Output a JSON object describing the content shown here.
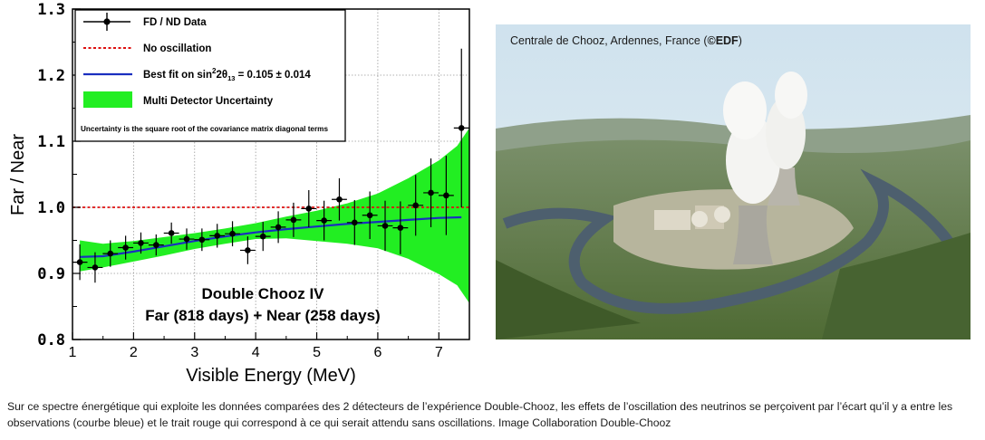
{
  "chart_data": {
    "type": "line",
    "xlabel": "Visible Energy (MeV)",
    "ylabel": "Far / Near",
    "xlim": [
      1,
      7.5
    ],
    "ylim": [
      0.8,
      1.3
    ],
    "xticks": [
      "1",
      "2",
      "3",
      "4",
      "5",
      "6",
      "7"
    ],
    "yticks": [
      "0.8",
      "0.9",
      "1.0",
      "1.1",
      "1.2",
      "1.3"
    ],
    "grid": true,
    "legend_position": "top-left",
    "legend": {
      "data": "FD / ND Data",
      "no_osc": "No oscillation",
      "best_fit_prefix": "Best fit on sin",
      "best_fit_sup": "2",
      "best_fit_mid": "2θ",
      "best_fit_sub": "13",
      "best_fit_value": " = 0.105 ± 0.014",
      "band": "Multi Detector Uncertainty",
      "note": "Uncertainty is the square root of the covariance matrix diagonal terms"
    },
    "annotation": {
      "line1": "Double Chooz IV",
      "line2": "Far (818 days) + Near (258 days)"
    },
    "series": [
      {
        "name": "FD / ND Data",
        "points": [
          {
            "x": 1.12,
            "y": 0.917,
            "err": 0.027
          },
          {
            "x": 1.37,
            "y": 0.909,
            "err": 0.023
          },
          {
            "x": 1.62,
            "y": 0.93,
            "err": 0.02
          },
          {
            "x": 1.87,
            "y": 0.939,
            "err": 0.018
          },
          {
            "x": 2.12,
            "y": 0.946,
            "err": 0.016
          },
          {
            "x": 2.37,
            "y": 0.943,
            "err": 0.016
          },
          {
            "x": 2.62,
            "y": 0.961,
            "err": 0.016
          },
          {
            "x": 2.87,
            "y": 0.952,
            "err": 0.016
          },
          {
            "x": 3.12,
            "y": 0.951,
            "err": 0.017
          },
          {
            "x": 3.37,
            "y": 0.957,
            "err": 0.018
          },
          {
            "x": 3.62,
            "y": 0.96,
            "err": 0.019
          },
          {
            "x": 3.87,
            "y": 0.935,
            "err": 0.021
          },
          {
            "x": 4.12,
            "y": 0.956,
            "err": 0.022
          },
          {
            "x": 4.37,
            "y": 0.97,
            "err": 0.024
          },
          {
            "x": 4.62,
            "y": 0.981,
            "err": 0.026
          },
          {
            "x": 4.87,
            "y": 0.998,
            "err": 0.028
          },
          {
            "x": 5.12,
            "y": 0.98,
            "err": 0.03
          },
          {
            "x": 5.37,
            "y": 1.012,
            "err": 0.032
          },
          {
            "x": 5.62,
            "y": 0.977,
            "err": 0.034
          },
          {
            "x": 5.87,
            "y": 0.988,
            "err": 0.036
          },
          {
            "x": 6.12,
            "y": 0.972,
            "err": 0.038
          },
          {
            "x": 6.37,
            "y": 0.969,
            "err": 0.04
          },
          {
            "x": 6.62,
            "y": 1.003,
            "err": 0.046
          },
          {
            "x": 6.87,
            "y": 1.022,
            "err": 0.052
          },
          {
            "x": 7.12,
            "y": 1.018,
            "err": 0.06
          },
          {
            "x": 7.37,
            "y": 1.12,
            "err": 0.12
          }
        ]
      },
      {
        "name": "No oscillation",
        "x": [
          1,
          7.5
        ],
        "y": [
          1.0,
          1.0
        ]
      },
      {
        "name": "Best fit",
        "x": [
          1.12,
          1.5,
          2,
          2.5,
          3,
          3.5,
          4,
          4.5,
          5,
          5.5,
          6,
          6.5,
          7,
          7.37
        ],
        "y": [
          0.925,
          0.926,
          0.933,
          0.941,
          0.949,
          0.956,
          0.962,
          0.967,
          0.971,
          0.975,
          0.978,
          0.981,
          0.984,
          0.985
        ]
      },
      {
        "name": "Multi Detector Uncertainty",
        "x": [
          1.12,
          1.5,
          2,
          2.5,
          3,
          3.5,
          4,
          4.5,
          5,
          5.5,
          6,
          6.5,
          7,
          7.3,
          7.5
        ],
        "upper": [
          0.95,
          0.945,
          0.949,
          0.955,
          0.961,
          0.968,
          0.976,
          0.986,
          0.995,
          1.006,
          1.021,
          1.044,
          1.071,
          1.093,
          1.12
        ],
        "lower": [
          0.903,
          0.909,
          0.918,
          0.927,
          0.937,
          0.945,
          0.952,
          0.953,
          0.949,
          0.945,
          0.938,
          0.922,
          0.899,
          0.882,
          0.855
        ]
      }
    ]
  },
  "photo": {
    "caption_text": "Centrale de Chooz, Ardennes, France  (",
    "caption_bold": "©EDF",
    "caption_end": ")"
  },
  "caption": "Sur ce spectre énergétique qui exploite les données comparées des 2 détecteurs de l’expérience Double-Chooz, les effets de l’oscillation des neutrinos se perçoivent par l’écart qu’il y a entre les observations (courbe bleue) et le trait rouge qui correspond à ce qui serait attendu sans oscillations. Image Collaboration Double-Chooz",
  "colors": {
    "band": "#22ee22",
    "fit": "#1a2fbf",
    "noosc": "#dd1111",
    "data": "#000000"
  }
}
